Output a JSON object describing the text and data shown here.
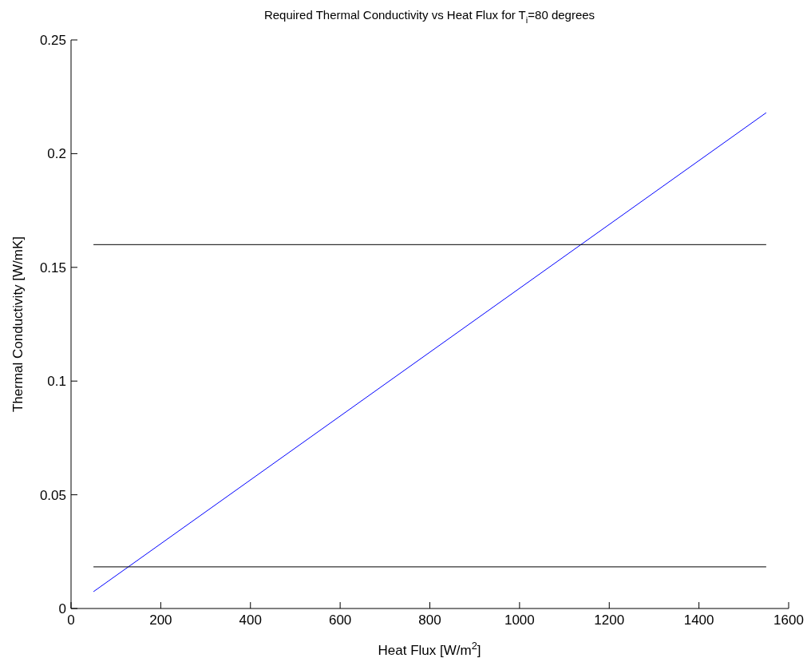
{
  "chart_data": {
    "type": "line",
    "title": "Required Thermal Conductivity vs Heat Flux for T$_{i}$=80 degrees",
    "xlabel": "Heat Flux [W/m$^{2}$]",
    "ylabel": "Thermal Conductivity [W/mK]",
    "series": [
      {
        "color": "#0000ff",
        "values": [
          0.0074,
          0.218
        ]
      },
      {
        "color": "#000000",
        "values": [
          0.16,
          0.16
        ]
      },
      {
        "color": "#000000",
        "values": [
          0.0183,
          0.0183
        ]
      }
    ],
    "x": [
      50,
      1550
    ],
    "xlim": [
      0,
      1600
    ],
    "xticks": [
      0,
      200,
      400,
      600,
      800,
      1000,
      1200,
      1400,
      1600
    ],
    "ylim": [
      0,
      0.25
    ],
    "yticks": [
      0,
      0.05,
      0.1,
      0.15,
      0.2,
      0.25
    ],
    "grid": false
  }
}
